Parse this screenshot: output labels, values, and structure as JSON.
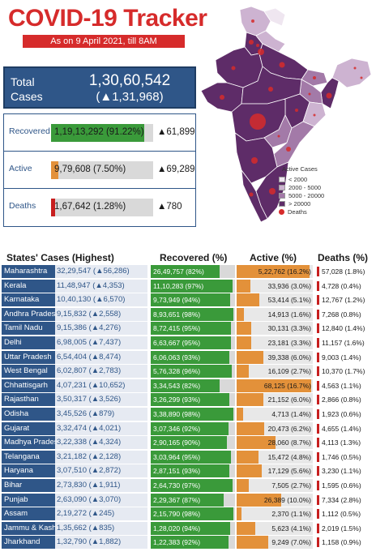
{
  "header": {
    "title": "COVID-19 Tracker",
    "subtitle": "As on 9 April 2021, till 8AM"
  },
  "total": {
    "label": "Total Cases",
    "value": "1,30,60,542",
    "delta": "(▲1,31,968)"
  },
  "stats": [
    {
      "label": "Recovered",
      "value": "1,19,13,292 (91.22%)",
      "delta": "▲61,899",
      "fraction": 0.9122,
      "color": "#3a9a3a"
    },
    {
      "label": "Active",
      "value": "9,79,608 (7.50%)",
      "delta": "▲69,289",
      "fraction": 0.075,
      "color": "#e3913a"
    },
    {
      "label": "Deaths",
      "value": "1,67,642 (1.28%)",
      "delta": "▲780",
      "fraction": 0.0128,
      "color": "#c71f1f"
    }
  ],
  "legend": {
    "title": "Active Cases",
    "items": [
      {
        "label": "< 2000",
        "color": "#efe6f0"
      },
      {
        "label": "2000 - 5000",
        "color": "#cdb3d1"
      },
      {
        "label": "5000 - 20000",
        "color": "#a37aa8"
      },
      {
        "label": "> 20000",
        "color": "#5e2c68"
      }
    ],
    "deaths_label": "Deaths",
    "deaths_color": "#d62b2b"
  },
  "table": {
    "headers": {
      "state": "States' Cases (Highest)",
      "recovered": "Recovered (%)",
      "active": "Active (%)",
      "deaths": "Deaths (%)"
    },
    "rows": [
      {
        "state": "Maharashtra",
        "cases": "32,29,547 (▲56,286)",
        "rec": "26,49,757 (82%)",
        "rec_pct": 82,
        "act": "5,22,762 (16.2%)",
        "act_pct": 16.2,
        "dea": "57,028 (1.8%)"
      },
      {
        "state": "Kerala",
        "cases": "11,48,947 (▲4,353)",
        "rec": "11,10,283 (97%)",
        "rec_pct": 97,
        "act": "33,936 (3.0%)",
        "act_pct": 3.0,
        "dea": "4,728 (0.4%)"
      },
      {
        "state": "Karnataka",
        "cases": "10,40,130 (▲6,570)",
        "rec": "9,73,949 (94%)",
        "rec_pct": 94,
        "act": "53,414 (5.1%)",
        "act_pct": 5.1,
        "dea": "12,767 (1.2%)"
      },
      {
        "state": "Andhra Pradesh",
        "cases": "9,15,832 (▲2,558)",
        "rec": "8,93,651 (98%)",
        "rec_pct": 98,
        "act": "14,913 (1.6%)",
        "act_pct": 1.6,
        "dea": "7,268 (0.8%)"
      },
      {
        "state": "Tamil Nadu",
        "cases": "9,15,386 (▲4,276)",
        "rec": "8,72,415 (95%)",
        "rec_pct": 95,
        "act": "30,131 (3.3%)",
        "act_pct": 3.3,
        "dea": "12,840 (1.4%)"
      },
      {
        "state": "Delhi",
        "cases": "6,98,005 (▲7,437)",
        "rec": "6,63,667 (95%)",
        "rec_pct": 95,
        "act": "23,181 (3.3%)",
        "act_pct": 3.3,
        "dea": "11,157 (1.6%)"
      },
      {
        "state": "Uttar Pradesh",
        "cases": "6,54,404 (▲8,474)",
        "rec": "6,06,063 (93%)",
        "rec_pct": 93,
        "act": "39,338 (6.0%)",
        "act_pct": 6.0,
        "dea": "9,003 (1.4%)"
      },
      {
        "state": "West Bengal",
        "cases": "6,02,807 (▲2,783)",
        "rec": "5,76,328 (96%)",
        "rec_pct": 96,
        "act": "16,109 (2.7%)",
        "act_pct": 2.7,
        "dea": "10,370 (1.7%)"
      },
      {
        "state": "Chhattisgarh",
        "cases": "4,07,231 (▲10,652)",
        "rec": "3,34,543 (82%)",
        "rec_pct": 82,
        "act": "68,125 (16.7%)",
        "act_pct": 16.7,
        "dea": "4,563 (1.1%)"
      },
      {
        "state": "Rajasthan",
        "cases": "3,50,317 (▲3,526)",
        "rec": "3,26,299 (93%)",
        "rec_pct": 93,
        "act": "21,152 (6.0%)",
        "act_pct": 6.0,
        "dea": "2,866 (0.8%)"
      },
      {
        "state": "Odisha",
        "cases": "3,45,526 (▲879)",
        "rec": "3,38,890 (98%)",
        "rec_pct": 98,
        "act": "4,713 (1.4%)",
        "act_pct": 1.4,
        "dea": "1,923 (0.6%)"
      },
      {
        "state": "Gujarat",
        "cases": "3,32,474 (▲4,021)",
        "rec": "3,07,346 (92%)",
        "rec_pct": 92,
        "act": "20,473 (6.2%)",
        "act_pct": 6.2,
        "dea": "4,655 (1.4%)"
      },
      {
        "state": "Madhya Pradesh",
        "cases": "3,22,338 (▲4,324)",
        "rec": "2,90,165 (90%)",
        "rec_pct": 90,
        "act": "28,060 (8.7%)",
        "act_pct": 8.7,
        "dea": "4,113 (1.3%)"
      },
      {
        "state": "Telangana",
        "cases": "3,21,182 (▲2,128)",
        "rec": "3,03,964 (95%)",
        "rec_pct": 95,
        "act": "15,472 (4.8%)",
        "act_pct": 4.8,
        "dea": "1,746 (0.5%)"
      },
      {
        "state": "Haryana",
        "cases": "3,07,510 (▲2,872)",
        "rec": "2,87,151 (93%)",
        "rec_pct": 93,
        "act": "17,129 (5.6%)",
        "act_pct": 5.6,
        "dea": "3,230 (1.1%)"
      },
      {
        "state": "Bihar",
        "cases": "2,73,830 (▲1,911)",
        "rec": "2,64,730 (97%)",
        "rec_pct": 97,
        "act": "7,505 (2.7%)",
        "act_pct": 2.7,
        "dea": "1,595 (0.6%)"
      },
      {
        "state": "Punjab",
        "cases": "2,63,090 (▲3,070)",
        "rec": "2,29,367 (87%)",
        "rec_pct": 87,
        "act": "26,389 (10.0%)",
        "act_pct": 10.0,
        "dea": "7,334 (2.8%)"
      },
      {
        "state": "Assam",
        "cases": "2,19,272 (▲245)",
        "rec": "2,15,790 (98%)",
        "rec_pct": 98,
        "act": "2,370 (1.1%)",
        "act_pct": 1.1,
        "dea": "1,112 (0.5%)"
      },
      {
        "state": "Jammu & Kash..",
        "cases": "1,35,662 (▲835)",
        "rec": "1,28,020 (94%)",
        "rec_pct": 94,
        "act": "5,623 (4.1%)",
        "act_pct": 4.1,
        "dea": "2,019 (1.5%)"
      },
      {
        "state": "Jharkhand",
        "cases": "1,32,790 (▲1,882)",
        "rec": "1,22,383 (92%)",
        "rec_pct": 92,
        "act": "9,249 (7.0%)",
        "act_pct": 7.0,
        "dea": "1,158 (0.9%)"
      }
    ]
  }
}
